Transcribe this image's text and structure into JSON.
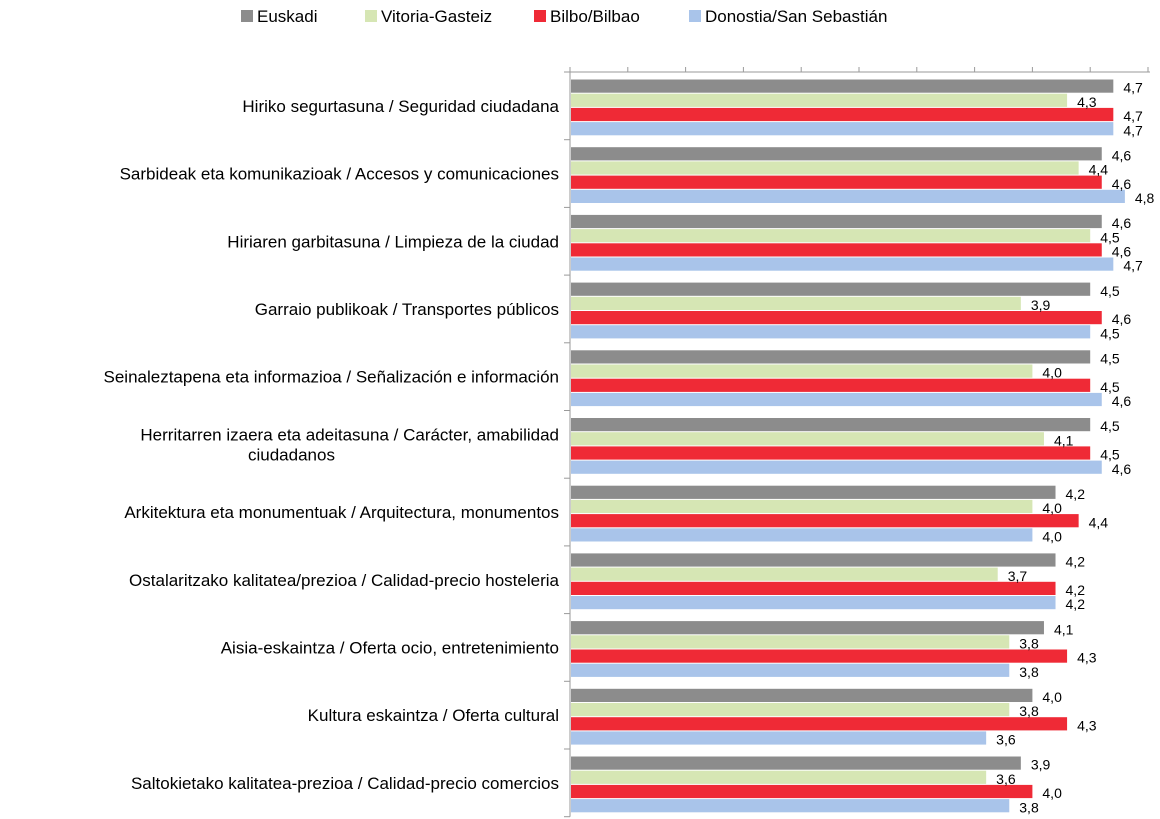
{
  "chart_data": {
    "type": "bar",
    "orientation": "horizontal",
    "legend_position": "top",
    "grid": false,
    "xlim": [
      0,
      5
    ],
    "categories": [
      [
        "Hiriko segurtasuna / Seguridad ciudadana"
      ],
      [
        "Sarbideak eta komunikazioak / Accesos y comunicaciones"
      ],
      [
        "Hiriaren garbitasuna / Limpieza de la ciudad"
      ],
      [
        "Garraio publikoak / Transportes públicos"
      ],
      [
        "Seinaleztapena eta informazioa / Señalización e información"
      ],
      [
        "Herritarren izaera eta adeitasuna / Carácter, amabilidad",
        "ciudadanos"
      ],
      [
        "Arkitektura eta monumentuak / Arquitectura, monumentos"
      ],
      [
        "Ostalaritzako kalitatea/prezioa / Calidad-precio hosteleria"
      ],
      [
        "Aisia-eskaintza / Oferta ocio, entretenimiento"
      ],
      [
        "Kultura eskaintza / Oferta cultural"
      ],
      [
        "Saltokietako kalitatea-prezioa / Calidad-precio comercios"
      ]
    ],
    "series": [
      {
        "name": "Euskadi",
        "color": "#8c8c8c",
        "values": [
          4.7,
          4.6,
          4.6,
          4.5,
          4.5,
          4.5,
          4.2,
          4.2,
          4.1,
          4.0,
          3.9
        ],
        "labels": [
          "4,7",
          "4,6",
          "4,6",
          "4,5",
          "4,5",
          "4,5",
          "4,2",
          "4,2",
          "4,1",
          "4,0",
          "3,9"
        ]
      },
      {
        "name": "Vitoria-Gasteiz",
        "color": "#d6e6b4",
        "values": [
          4.3,
          4.4,
          4.5,
          3.9,
          4.0,
          4.1,
          4.0,
          3.7,
          3.8,
          3.8,
          3.6
        ],
        "labels": [
          "4,3",
          "4,4",
          "4,5",
          "3,9",
          "4,0",
          "4,1",
          "4,0",
          "3,7",
          "3,8",
          "3,8",
          "3,6"
        ]
      },
      {
        "name": "Bilbo/Bilbao",
        "color": "#ef2a36",
        "values": [
          4.7,
          4.6,
          4.6,
          4.6,
          4.5,
          4.5,
          4.4,
          4.2,
          4.3,
          4.3,
          4.0
        ],
        "labels": [
          "4,7",
          "4,6",
          "4,6",
          "4,6",
          "4,5",
          "4,5",
          "4,4",
          "4,2",
          "4,3",
          "4,3",
          "4,0"
        ]
      },
      {
        "name": "Donostia/San Sebastián",
        "color": "#a9c4ea",
        "values": [
          4.7,
          4.8,
          4.7,
          4.5,
          4.6,
          4.6,
          4.0,
          4.2,
          3.8,
          3.6,
          3.8
        ],
        "labels": [
          "4,7",
          "4,8",
          "4,7",
          "4,5",
          "4,6",
          "4,6",
          "4,0",
          "4,2",
          "3,8",
          "3,6",
          "3,8"
        ]
      }
    ]
  }
}
